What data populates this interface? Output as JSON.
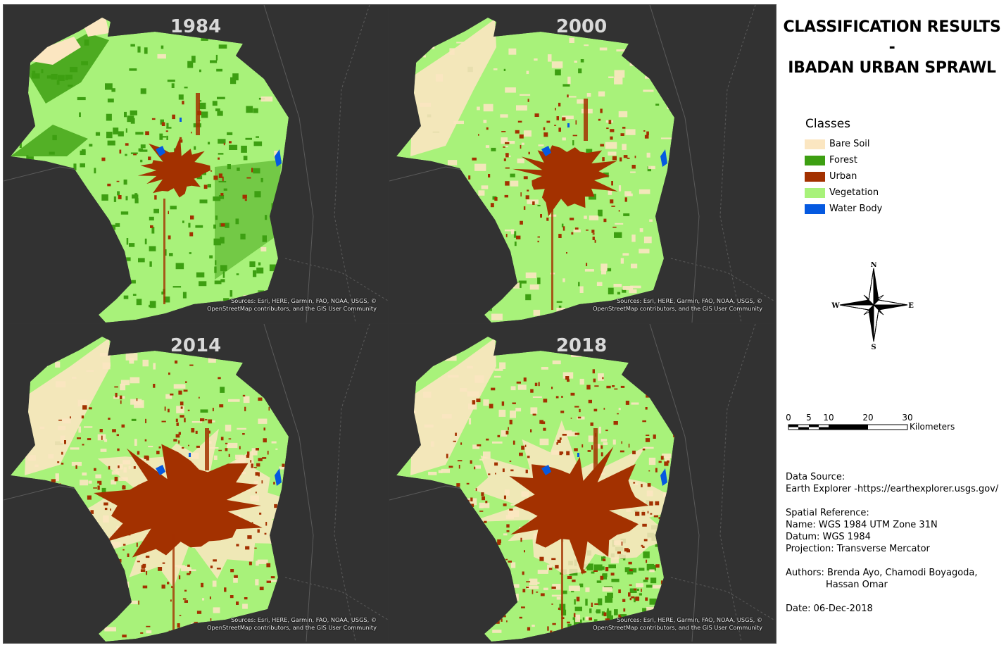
{
  "title_line1": "CLASSIFICATION RESULTS -",
  "title_line2": "IBADAN URBAN SPRAWL",
  "panels": [
    {
      "year": "1984",
      "attrib_line1": "Sources: Esri, HERE, Garmin, FAO, NOAA, USGS, ©",
      "attrib_line2": "OpenStreetMap contributors, and the GIS User Community"
    },
    {
      "year": "2000",
      "attrib_line1": "Sources: Esri, HERE, Garmin, FAO, NOAA, USGS, ©",
      "attrib_line2": "OpenStreetMap contributors, and the GIS User Community"
    },
    {
      "year": "2014",
      "attrib_line1": "Sources: Esri, HERE, Garmin, FAO, NOAA, USGS, ©",
      "attrib_line2": "OpenStreetMap contributors, and the GIS User Community"
    },
    {
      "year": "2018",
      "attrib_line1": "Sources: Esri, HERE, Garmin, FAO, NOAA, USGS, ©",
      "attrib_line2": "OpenStreetMap contributors, and the GIS User Community"
    }
  ],
  "legend": {
    "title": "Classes",
    "items": [
      {
        "label": "Bare Soil",
        "color": "#fbe6c1"
      },
      {
        "label": "Forest",
        "color": "#3d9f12"
      },
      {
        "label": "Urban",
        "color": "#a33100"
      },
      {
        "label": "Vegetation",
        "color": "#a8f27a"
      },
      {
        "label": "Water Body",
        "color": "#0559e0"
      }
    ]
  },
  "north_arrow": {
    "n": "N",
    "s": "S",
    "e": "E",
    "w": "W"
  },
  "scale": {
    "ticks": [
      "0",
      "5",
      "10",
      "20",
      "30"
    ],
    "unit": "Kilometers"
  },
  "data_source": {
    "heading": "Data Source:",
    "value": "Earth Explorer -https://earthexplorer.usgs.gov/"
  },
  "spatial_reference": {
    "heading": "Spatial Reference:",
    "name": "Name: WGS 1984 UTM Zone 31N",
    "datum": "Datum: WGS 1984",
    "projection": "Projection: Transverse Mercator"
  },
  "authors": {
    "line1": "Authors: Brenda Ayo, Chamodi Boyagoda,",
    "line2": "Hassan Omar"
  },
  "date": "Date: 06-Dec-2018",
  "colors": {
    "basemap": "#323232",
    "roads": "#5a5a5a",
    "year_label": "#d9d9d9"
  }
}
